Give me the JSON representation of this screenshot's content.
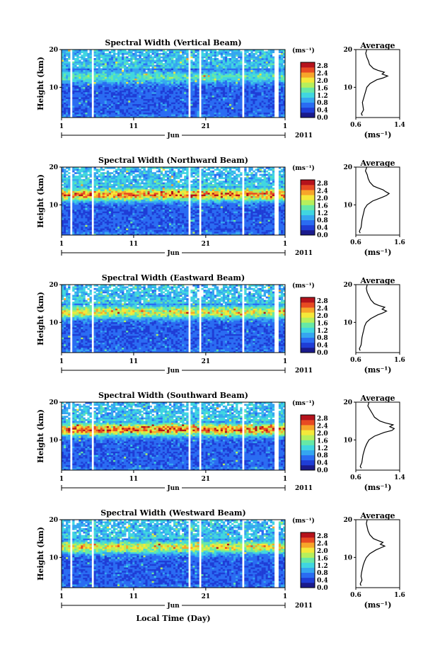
{
  "figure": {
    "xlabel": "Local Time (Day)",
    "month_label": "Jun",
    "year_label": "2011"
  },
  "colorbar": {
    "unit_label": "(ms⁻¹)",
    "ticks": [
      "0.0",
      "0.4",
      "0.8",
      "1.2",
      "1.6",
      "2.0",
      "2.4",
      "2.8"
    ],
    "colors": [
      "#1a1a8c",
      "#1f3dd6",
      "#2a6cf2",
      "#35a6f0",
      "#40d6e0",
      "#66e8a6",
      "#b6ef5c",
      "#f4e83a",
      "#f7a52a",
      "#e84a22",
      "#b5121b"
    ]
  },
  "chart_data": [
    {
      "type": "heatmap",
      "title": "Spectral Width (Vertical Beam)",
      "ylabel": "Height (km)",
      "ylim": [
        2,
        20
      ],
      "yticks": [
        "10",
        "20"
      ],
      "xticks": [
        "1",
        "11",
        "21",
        "1"
      ],
      "zlim": [
        0,
        3.0
      ],
      "intensity": "low",
      "gaps_days": [
        [
          2.2,
          2.5
        ],
        [
          5.3,
          5.6
        ],
        [
          18.6,
          19.0
        ],
        [
          20.0,
          20.4
        ],
        [
          26.0,
          26.4
        ],
        [
          30.6,
          31.0
        ]
      ],
      "average": {
        "title": "Average",
        "xlabel": "(ms⁻¹)",
        "xticks": [
          "0.6",
          "1.4"
        ],
        "xlim": [
          0.6,
          1.4
        ],
        "ylim": [
          2,
          20
        ],
        "yticks": [
          "10",
          "20"
        ],
        "heights": [
          2.5,
          3,
          4,
          5,
          6,
          7,
          8,
          9,
          10,
          11,
          12,
          12.5,
          13,
          13.5,
          14,
          14.5,
          15,
          16,
          17,
          18,
          19,
          20
        ],
        "values": [
          0.72,
          0.7,
          0.74,
          0.73,
          0.72,
          0.74,
          0.76,
          0.78,
          0.8,
          0.86,
          0.98,
          1.1,
          1.18,
          1.08,
          1.12,
          1.0,
          0.92,
          0.85,
          0.83,
          0.8,
          0.78,
          0.8
        ]
      }
    },
    {
      "type": "heatmap",
      "title": "Spectral Width (Northward Beam)",
      "ylabel": "Height (km)",
      "ylim": [
        2,
        20
      ],
      "yticks": [
        "10",
        "20"
      ],
      "xticks": [
        "1",
        "11",
        "21",
        "1"
      ],
      "zlim": [
        0,
        3.0
      ],
      "intensity": "high",
      "gaps_days": [
        [
          2.2,
          2.5
        ],
        [
          5.3,
          5.6
        ],
        [
          18.6,
          19.0
        ],
        [
          20.0,
          20.4
        ],
        [
          26.0,
          26.4
        ],
        [
          30.6,
          31.0
        ]
      ],
      "average": {
        "title": "Average",
        "xlabel": "(ms⁻¹)",
        "xticks": [
          "0.6",
          "1.6"
        ],
        "xlim": [
          0.6,
          1.6
        ],
        "ylim": [
          2,
          20
        ],
        "yticks": [
          "10",
          "20"
        ],
        "heights": [
          2.5,
          3,
          4,
          5,
          6,
          7,
          8,
          9,
          10,
          11,
          12,
          12.5,
          13,
          13.5,
          14,
          14.5,
          15,
          16,
          17,
          18,
          19,
          20
        ],
        "values": [
          0.7,
          0.68,
          0.72,
          0.73,
          0.74,
          0.76,
          0.78,
          0.8,
          0.86,
          0.98,
          1.2,
          1.3,
          1.36,
          1.28,
          1.22,
          1.1,
          1.0,
          0.92,
          0.88,
          0.86,
          0.82,
          0.85
        ]
      }
    },
    {
      "type": "heatmap",
      "title": "Spectral Width (Eastward Beam)",
      "ylabel": "Height (km)",
      "ylim": [
        2,
        20
      ],
      "yticks": [
        "10",
        "20"
      ],
      "xticks": [
        "1",
        "11",
        "21",
        "1"
      ],
      "zlim": [
        0,
        3.0
      ],
      "intensity": "mid",
      "gaps_days": [
        [
          2.2,
          2.5
        ],
        [
          5.3,
          5.6
        ],
        [
          18.6,
          19.0
        ],
        [
          20.0,
          20.4
        ],
        [
          26.0,
          26.4
        ],
        [
          30.6,
          31.0
        ]
      ],
      "average": {
        "title": "Average",
        "xlabel": "(ms⁻¹)",
        "xticks": [
          "0.6",
          "1.6"
        ],
        "xlim": [
          0.6,
          1.6
        ],
        "ylim": [
          2,
          20
        ],
        "yticks": [
          "10",
          "20"
        ],
        "heights": [
          2.5,
          3,
          4,
          5,
          6,
          7,
          8,
          9,
          10,
          11,
          12,
          12.5,
          13,
          13.5,
          14,
          14.5,
          15,
          16,
          17,
          18,
          19,
          20
        ],
        "values": [
          0.7,
          0.68,
          0.72,
          0.73,
          0.74,
          0.76,
          0.78,
          0.8,
          0.84,
          0.94,
          1.1,
          1.22,
          1.3,
          1.2,
          1.26,
          1.12,
          1.02,
          0.94,
          0.9,
          0.86,
          0.84,
          0.86
        ]
      }
    },
    {
      "type": "heatmap",
      "title": "Spectral Width (Southward Beam)",
      "ylabel": "Height (km)",
      "ylim": [
        2,
        20
      ],
      "yticks": [
        "10",
        "20"
      ],
      "xticks": [
        "1",
        "11",
        "21",
        "1"
      ],
      "zlim": [
        0,
        3.0
      ],
      "intensity": "high",
      "gaps_days": [
        [
          2.2,
          2.5
        ],
        [
          5.3,
          5.6
        ],
        [
          18.6,
          19.0
        ],
        [
          20.0,
          20.4
        ],
        [
          26.0,
          26.4
        ],
        [
          30.6,
          31.0
        ]
      ],
      "average": {
        "title": "Average",
        "xlabel": "(ms⁻¹)",
        "xticks": [
          "0.6",
          "1.4"
        ],
        "xlim": [
          0.6,
          1.4
        ],
        "ylim": [
          2,
          20
        ],
        "yticks": [
          "10",
          "20"
        ],
        "heights": [
          2.5,
          3,
          4,
          5,
          6,
          7,
          8,
          9,
          10,
          11,
          12,
          12.5,
          13,
          13.5,
          14,
          14.5,
          15,
          16,
          17,
          18,
          19,
          20
        ],
        "values": [
          0.7,
          0.68,
          0.71,
          0.72,
          0.73,
          0.75,
          0.77,
          0.8,
          0.84,
          0.94,
          1.12,
          1.26,
          1.3,
          1.22,
          1.28,
          1.14,
          1.04,
          0.94,
          0.9,
          0.86,
          0.82,
          0.84
        ]
      }
    },
    {
      "type": "heatmap",
      "title": "Spectral Width (Westward Beam)",
      "ylabel": "Height (km)",
      "ylim": [
        2,
        20
      ],
      "yticks": [
        "10",
        "20"
      ],
      "xticks": [
        "1",
        "11",
        "21",
        "1"
      ],
      "zlim": [
        0,
        3.0
      ],
      "intensity": "mid",
      "gaps_days": [
        [
          2.2,
          2.5
        ],
        [
          5.3,
          5.6
        ],
        [
          18.6,
          19.0
        ],
        [
          20.0,
          20.4
        ],
        [
          26.0,
          26.4
        ],
        [
          30.6,
          31.0
        ]
      ],
      "average": {
        "title": "Average",
        "xlabel": "(ms⁻¹)",
        "xticks": [
          "0.6",
          "1.6"
        ],
        "xlim": [
          0.6,
          1.6
        ],
        "ylim": [
          2,
          20
        ],
        "yticks": [
          "10",
          "20"
        ],
        "heights": [
          2.5,
          3,
          4,
          5,
          6,
          7,
          8,
          9,
          10,
          11,
          12,
          12.5,
          13,
          13.5,
          14,
          14.5,
          15,
          16,
          17,
          18,
          19,
          20
        ],
        "values": [
          0.72,
          0.7,
          0.74,
          0.72,
          0.73,
          0.75,
          0.77,
          0.8,
          0.84,
          0.92,
          1.06,
          1.16,
          1.26,
          1.16,
          1.22,
          1.1,
          1.0,
          0.92,
          0.88,
          0.86,
          0.84,
          0.86
        ]
      }
    }
  ]
}
